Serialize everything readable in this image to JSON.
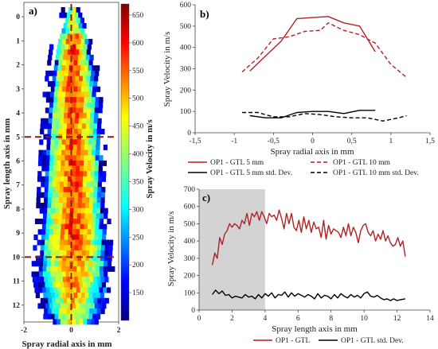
{
  "panels": {
    "a_label": "a)",
    "b_label": "b)",
    "c_label": "c)"
  },
  "chart_data": [
    {
      "type": "heatmap",
      "panel": "a)",
      "xlabel": "Spray radial axis in mm",
      "ylabel": "Spray length axis in mm",
      "xlim": [
        -2,
        2
      ],
      "ylim": [
        -0.6,
        12.7
      ],
      "x_ticks": [
        "-2",
        "0",
        "2"
      ],
      "y_ticks": [
        "0",
        "1",
        "2",
        "3",
        "4",
        "5",
        "6",
        "7",
        "8",
        "9",
        "10",
        "11",
        "12"
      ],
      "colorbar": {
        "label": "Spray Velocity in m/s",
        "range": [
          100,
          670
        ],
        "ticks": [
          "150",
          "200",
          "250",
          "300",
          "350",
          "400",
          "450",
          "500",
          "550",
          "600",
          "650"
        ]
      },
      "reference_lines": {
        "vertical_x": 0,
        "horizontal_y": [
          5,
          10
        ],
        "color": "#8b1a1a"
      },
      "description_width_by_length": [
        [
          -0.5,
          0.2
        ],
        [
          1,
          0.7
        ],
        [
          3,
          1.0
        ],
        [
          5,
          1.15
        ],
        [
          8,
          1.3
        ],
        [
          10.5,
          1.5
        ],
        [
          12,
          1.2
        ],
        [
          12.5,
          0.9
        ]
      ]
    },
    {
      "type": "line",
      "panel": "b)",
      "xlabel": "Spray radial axis in mm",
      "ylabel": "Spray Velocity in m/s",
      "xlim": [
        -1.5,
        1.5
      ],
      "ylim": [
        0,
        600
      ],
      "x_ticks": [
        "-1,5",
        "-1",
        "-0,5",
        "0",
        "0,5",
        "1",
        "1,5"
      ],
      "y_ticks": [
        "0",
        "100",
        "200",
        "300",
        "400",
        "500",
        "600"
      ],
      "grid": false,
      "legend_position": "bottom",
      "series": [
        {
          "name": "OP1 - GTL 5 mm",
          "color": "#b22222",
          "dash": "solid",
          "x": [
            -0.8,
            -0.6,
            -0.4,
            -0.2,
            0.0,
            0.2,
            0.4,
            0.6,
            0.8
          ],
          "y": [
            290,
            360,
            430,
            535,
            540,
            545,
            515,
            500,
            380
          ]
        },
        {
          "name": "OP1 - GTL 10 mm",
          "color": "#b22222",
          "dash": "dashed",
          "x": [
            -0.9,
            -0.7,
            -0.5,
            -0.3,
            -0.1,
            0.1,
            0.2,
            0.4,
            0.6,
            0.8,
            1.0,
            1.2
          ],
          "y": [
            285,
            350,
            440,
            450,
            475,
            480,
            515,
            480,
            460,
            420,
            320,
            260
          ]
        },
        {
          "name": "OP1 - GTL 5 mm std. Dev.",
          "color": "#000000",
          "dash": "solid",
          "x": [
            -0.8,
            -0.6,
            -0.4,
            -0.2,
            0.0,
            0.2,
            0.4,
            0.6,
            0.8
          ],
          "y": [
            80,
            70,
            70,
            95,
            100,
            100,
            90,
            105,
            105
          ]
        },
        {
          "name": "OP1 - GTL 10 mm std. Dev.",
          "color": "#000000",
          "dash": "dashed",
          "x": [
            -0.9,
            -0.7,
            -0.5,
            -0.3,
            -0.1,
            0.1,
            0.3,
            0.5,
            0.7,
            0.9,
            1.1,
            1.2
          ],
          "y": [
            95,
            95,
            75,
            75,
            90,
            85,
            75,
            70,
            70,
            55,
            70,
            80
          ]
        }
      ]
    },
    {
      "type": "line",
      "panel": "c)",
      "xlabel": "Spray length axis in mm",
      "ylabel": "Spray Velocity in m/s",
      "xlim": [
        0,
        14
      ],
      "ylim": [
        0,
        700
      ],
      "x_ticks": [
        "0",
        "2",
        "4",
        "6",
        "8",
        "10",
        "12",
        "14"
      ],
      "y_ticks": [
        "0",
        "100",
        "200",
        "300",
        "400",
        "500",
        "600",
        "700"
      ],
      "grid": false,
      "shaded_region_x": [
        0,
        4
      ],
      "legend_position": "bottom",
      "series": [
        {
          "name": "OP1 - GTL",
          "color": "#b22222",
          "dash": "solid",
          "x": [
            0.8,
            0.95,
            1.1,
            1.25,
            1.4,
            1.55,
            1.7,
            1.85,
            2.0,
            2.15,
            2.3,
            2.45,
            2.6,
            2.75,
            2.9,
            3.05,
            3.2,
            3.35,
            3.5,
            3.65,
            3.8,
            3.95,
            4.1,
            4.25,
            4.4,
            4.55,
            4.7,
            4.85,
            5.0,
            5.15,
            5.3,
            5.45,
            5.6,
            5.75,
            5.9,
            6.05,
            6.2,
            6.35,
            6.5,
            6.65,
            6.8,
            6.95,
            7.1,
            7.25,
            7.4,
            7.55,
            7.7,
            7.85,
            8.0,
            8.15,
            8.3,
            8.45,
            8.6,
            8.75,
            8.9,
            9.05,
            9.2,
            9.35,
            9.5,
            9.65,
            9.8,
            9.95,
            10.1,
            10.25,
            10.4,
            10.55,
            10.7,
            10.85,
            11.0,
            11.15,
            11.3,
            11.45,
            11.6,
            11.75,
            11.9,
            12.05,
            12.2,
            12.35,
            12.5
          ],
          "y": [
            260,
            330,
            300,
            420,
            380,
            440,
            460,
            500,
            480,
            500,
            490,
            470,
            520,
            500,
            560,
            490,
            560,
            540,
            570,
            520,
            570,
            540,
            500,
            560,
            540,
            550,
            520,
            580,
            530,
            470,
            560,
            500,
            560,
            480,
            460,
            520,
            450,
            540,
            470,
            520,
            450,
            510,
            470,
            480,
            420,
            520,
            410,
            490,
            440,
            470,
            460,
            450,
            420,
            480,
            430,
            500,
            430,
            480,
            450,
            390,
            460,
            490,
            500,
            450,
            430,
            460,
            400,
            440,
            410,
            460,
            400,
            430,
            390,
            370,
            380,
            420,
            370,
            400,
            310
          ]
        },
        {
          "name": "OP1 - GTL std. Dev.",
          "color": "#000000",
          "dash": "solid",
          "x": [
            0.8,
            1.0,
            1.2,
            1.4,
            1.6,
            1.8,
            2.0,
            2.2,
            2.4,
            2.6,
            2.8,
            3.0,
            3.2,
            3.4,
            3.6,
            3.8,
            4.0,
            4.2,
            4.4,
            4.6,
            4.8,
            5.0,
            5.2,
            5.4,
            5.6,
            5.8,
            6.0,
            6.2,
            6.4,
            6.6,
            6.8,
            7.0,
            7.2,
            7.4,
            7.6,
            7.8,
            8.0,
            8.2,
            8.4,
            8.6,
            8.8,
            9.0,
            9.2,
            9.4,
            9.6,
            9.8,
            10.0,
            10.2,
            10.4,
            10.6,
            10.8,
            11.0,
            11.2,
            11.4,
            11.6,
            11.8,
            12.0,
            12.2,
            12.5
          ],
          "y": [
            90,
            115,
            95,
            110,
            85,
            90,
            70,
            80,
            75,
            70,
            90,
            75,
            80,
            65,
            90,
            70,
            95,
            80,
            100,
            70,
            90,
            85,
            105,
            75,
            100,
            80,
            95,
            85,
            75,
            90,
            80,
            65,
            95,
            70,
            85,
            80,
            65,
            90,
            70,
            95,
            80,
            70,
            90,
            75,
            85,
            70,
            95,
            105,
            80,
            75,
            85,
            70,
            60,
            65,
            55,
            65,
            55,
            60,
            65
          ]
        }
      ]
    }
  ]
}
